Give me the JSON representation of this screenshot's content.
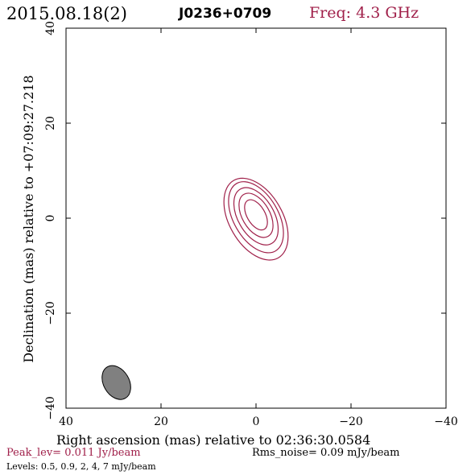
{
  "header": {
    "date": "2015.08.18(2)",
    "source": "J0236+0709",
    "freq": "Freq: 4.3 GHz"
  },
  "footer": {
    "peak": "Peak_lev=  0.011 Jy/beam",
    "rms": "Rms_noise= 0.09 mJy/beam",
    "levels": "Levels: 0.5, 0.9,   2,   4,   7 mJy/beam"
  },
  "colors": {
    "contour": "#a0204a",
    "beam_fill": "#808080",
    "axis": "#000000"
  },
  "chart_data": {
    "type": "contour",
    "xlabel": "Right ascension (mas) relative to 02:36:30.0584",
    "ylabel": "Declination (mas) relative to +07:09:27.218",
    "xlim": [
      40,
      -40
    ],
    "ylim": [
      -40,
      40
    ],
    "xticks": [
      40,
      20,
      0,
      -20,
      -40
    ],
    "yticks": [
      -40,
      -20,
      0,
      20,
      40
    ],
    "xtick_labels": [
      "40",
      "20",
      "0",
      "−20",
      "−40"
    ],
    "ytick_labels": [
      "−40",
      "−20",
      "0",
      "20",
      "40"
    ],
    "contours": [
      {
        "level": 0.5,
        "cx": 0,
        "cy": -0.2,
        "rx": 5.6,
        "ry": 9.4,
        "angle": 30
      },
      {
        "level": 0.9,
        "cx": 0,
        "cy": 0.2,
        "rx": 4.7,
        "ry": 8.2,
        "angle": 30
      },
      {
        "level": 2,
        "cx": 0,
        "cy": 0.4,
        "rx": 3.8,
        "ry": 6.6,
        "angle": 30
      },
      {
        "level": 4,
        "cx": 0,
        "cy": 0.6,
        "rx": 2.9,
        "ry": 5.1,
        "angle": 30
      },
      {
        "level": 7,
        "cx": 0,
        "cy": 0.7,
        "rx": 1.9,
        "ry": 3.5,
        "angle": 30
      }
    ],
    "beam": {
      "cx": 29.4,
      "cy": -34.6,
      "rx": 2.7,
      "ry": 3.8,
      "angle": 30
    }
  }
}
